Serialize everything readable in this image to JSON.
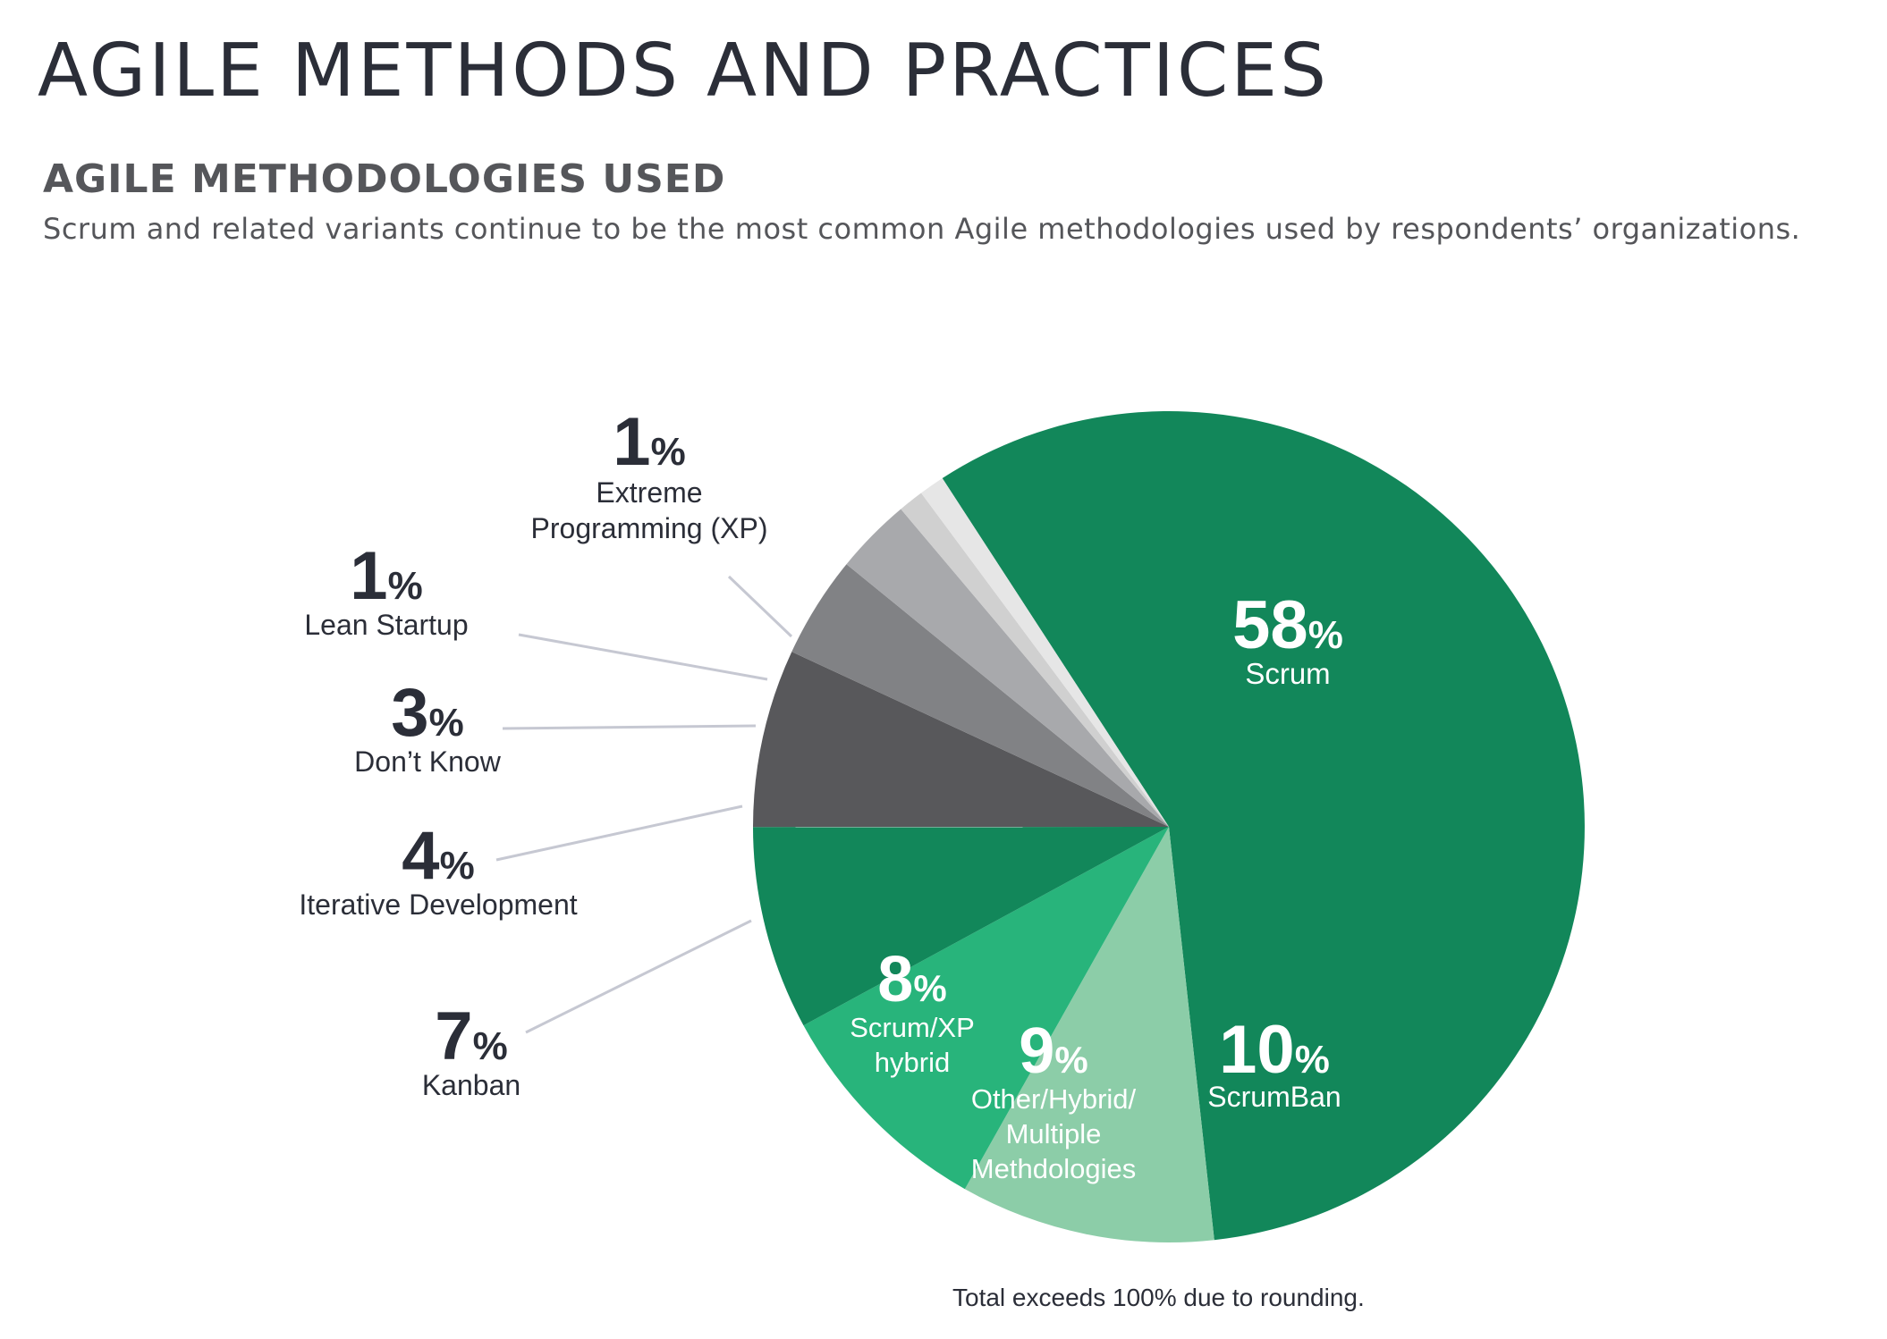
{
  "header": {
    "title": "AGILE METHODS AND PRACTICES",
    "section_title": "AGILE METHODOLOGIES USED",
    "subtitle": "Scrum and related variants continue to be the most common Agile methodologies used by respondents’ organizations."
  },
  "footnote": "Total exceeds 100% due to rounding.",
  "chart_data": {
    "type": "pie",
    "title": "AGILE METHODOLOGIES USED",
    "percent_symbol": "%",
    "slices": [
      {
        "label": "Scrum",
        "label_lines": [
          "Scrum"
        ],
        "value": 58,
        "color": "#12875a"
      },
      {
        "label": "ScrumBan",
        "label_lines": [
          "ScrumBan"
        ],
        "value": 10,
        "color": "#8ccda8"
      },
      {
        "label": "Other/Hybrid/ Multiple Methdologies",
        "label_lines": [
          "Other/Hybrid/",
          "Multiple",
          "Methdologies"
        ],
        "value": 9,
        "color": "#28b47b"
      },
      {
        "label": "Scrum/XP hybrid",
        "label_lines": [
          "Scrum/XP",
          "hybrid"
        ],
        "value": 8,
        "color": "#12875a"
      },
      {
        "label": "Kanban",
        "label_lines": [
          "Kanban"
        ],
        "value": 7,
        "color": "#58585b"
      },
      {
        "label": "Iterative Development",
        "label_lines": [
          "Iterative Development"
        ],
        "value": 4,
        "color": "#818285"
      },
      {
        "label": "Don’t Know",
        "label_lines": [
          "Don’t Know"
        ],
        "value": 3,
        "color": "#a8a9ac"
      },
      {
        "label": "Lean Startup",
        "label_lines": [
          "Lean Startup"
        ],
        "value": 1,
        "color": "#d0d0d0"
      },
      {
        "label": "Extreme Programming (XP)",
        "label_lines": [
          "Extreme",
          "Programming (XP)"
        ],
        "value": 1,
        "color": "#e6e6e6"
      }
    ]
  }
}
